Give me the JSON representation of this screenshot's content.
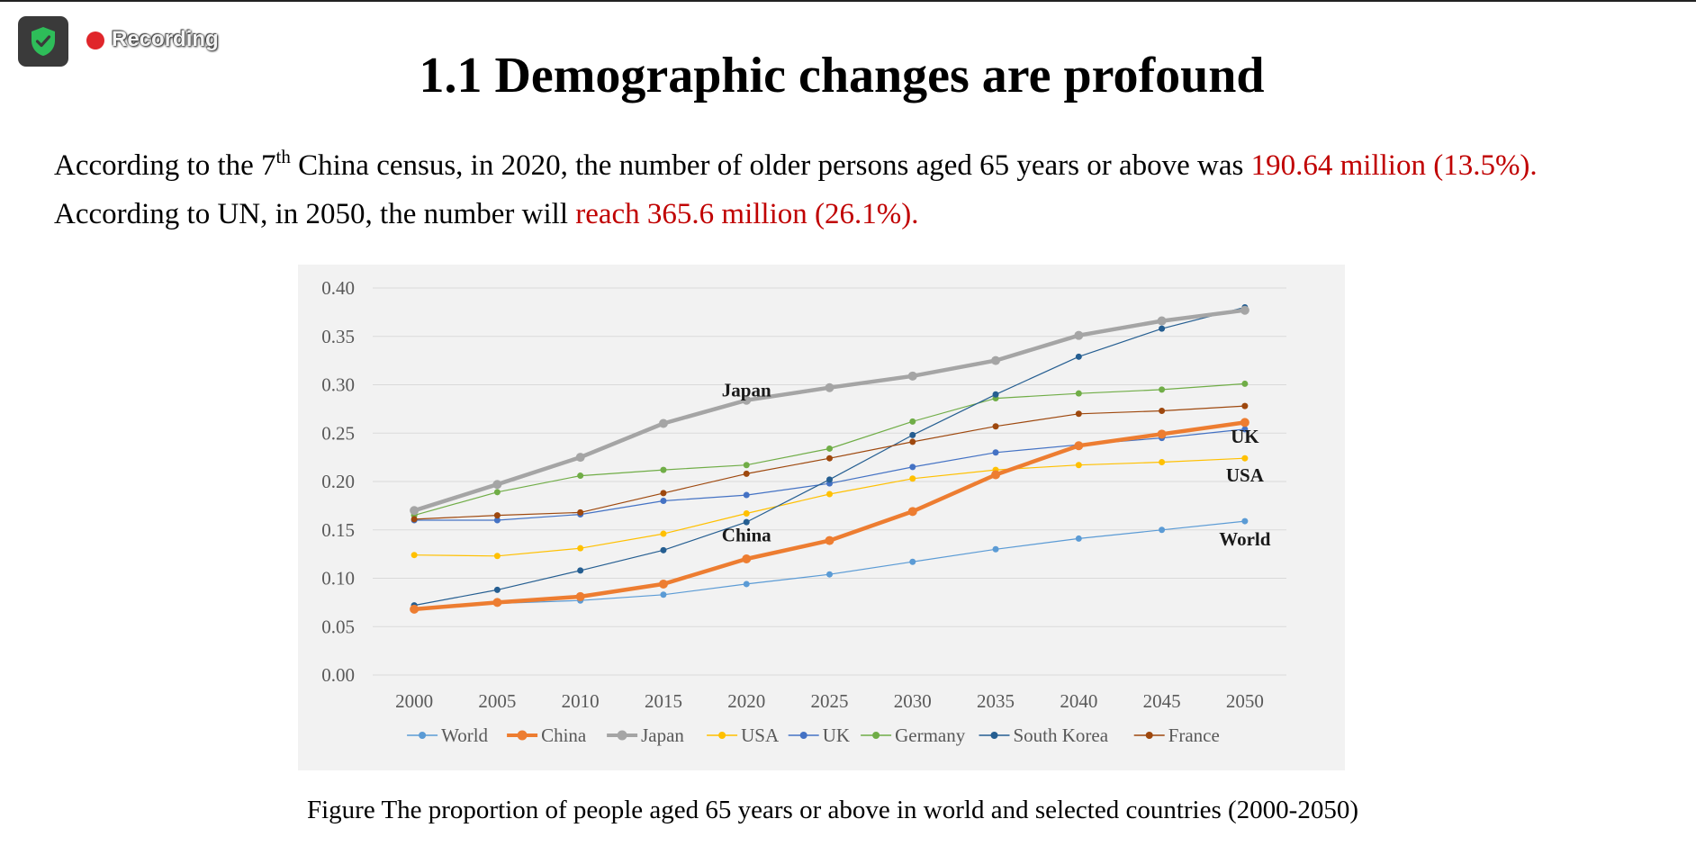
{
  "recording": {
    "label": "Recording",
    "icon": "shield-check-icon",
    "dot_color": "#e0262b"
  },
  "slide": {
    "title": "1.1 Demographic changes are profound",
    "para1": {
      "prefix": "According to the 7",
      "sup": "th",
      "middle": " China census, in 2020, the number of older persons aged 65 years or above was ",
      "highlight": "190.64 million (13.5%)."
    },
    "para2": {
      "prefix": "According to UN, in 2050, the number will ",
      "highlight": "reach  365.6 million (26.1%)."
    },
    "caption": "Figure The proportion of people aged 65 years or above in world and selected countries (2000-2050)",
    "accent_color": "#c00000"
  },
  "chart_data": {
    "type": "line",
    "x": [
      "2000",
      "2005",
      "2010",
      "2015",
      "2020",
      "2025",
      "2030",
      "2035",
      "2040",
      "2045",
      "2050"
    ],
    "yticks": [
      "0.00",
      "0.05",
      "0.10",
      "0.15",
      "0.20",
      "0.25",
      "0.30",
      "0.35",
      "0.40"
    ],
    "ylim": [
      0,
      0.4
    ],
    "grid": true,
    "legend_position": "bottom",
    "series": [
      {
        "name": "World",
        "color": "#5b9bd5",
        "width": 1.2,
        "marker": 7,
        "values": [
          0.069,
          0.074,
          0.077,
          0.083,
          0.094,
          0.104,
          0.117,
          0.13,
          0.141,
          0.15,
          0.159
        ]
      },
      {
        "name": "China",
        "color": "#ed7d31",
        "width": 4.5,
        "marker": 10,
        "values": [
          0.068,
          0.075,
          0.081,
          0.094,
          0.12,
          0.139,
          0.169,
          0.207,
          0.237,
          0.249,
          0.261
        ]
      },
      {
        "name": "Japan",
        "color": "#a5a5a5",
        "width": 4.5,
        "marker": 10,
        "values": [
          0.17,
          0.197,
          0.225,
          0.26,
          0.284,
          0.297,
          0.309,
          0.325,
          0.351,
          0.366,
          0.377
        ]
      },
      {
        "name": "USA",
        "color": "#ffc000",
        "width": 1.2,
        "marker": 7,
        "values": [
          0.124,
          0.123,
          0.131,
          0.146,
          0.167,
          0.187,
          0.203,
          0.212,
          0.217,
          0.22,
          0.224
        ]
      },
      {
        "name": "UK",
        "color": "#4472c4",
        "width": 1.2,
        "marker": 7,
        "values": [
          0.16,
          0.16,
          0.166,
          0.18,
          0.186,
          0.198,
          0.215,
          0.23,
          0.238,
          0.245,
          0.254
        ]
      },
      {
        "name": "Germany",
        "color": "#70ad47",
        "width": 1.2,
        "marker": 7,
        "values": [
          0.165,
          0.189,
          0.206,
          0.212,
          0.217,
          0.234,
          0.262,
          0.286,
          0.291,
          0.295,
          0.301
        ]
      },
      {
        "name": "South Korea",
        "color": "#255e91",
        "width": 1.2,
        "marker": 7,
        "values": [
          0.072,
          0.088,
          0.108,
          0.129,
          0.158,
          0.202,
          0.248,
          0.29,
          0.329,
          0.358,
          0.38
        ]
      },
      {
        "name": "France",
        "color": "#9e480e",
        "width": 1.2,
        "marker": 7,
        "values": [
          0.161,
          0.165,
          0.168,
          0.188,
          0.208,
          0.224,
          0.241,
          0.257,
          0.27,
          0.273,
          0.278
        ]
      }
    ],
    "annotations": [
      {
        "text": "Japan",
        "x": "2020",
        "y": 0.288
      },
      {
        "text": "China",
        "x": "2020",
        "y": 0.138
      },
      {
        "text": "UK",
        "x": "2050",
        "y": 0.24
      },
      {
        "text": "USA",
        "x": "2050",
        "y": 0.2
      },
      {
        "text": "World",
        "x": "2050",
        "y": 0.134
      }
    ]
  }
}
